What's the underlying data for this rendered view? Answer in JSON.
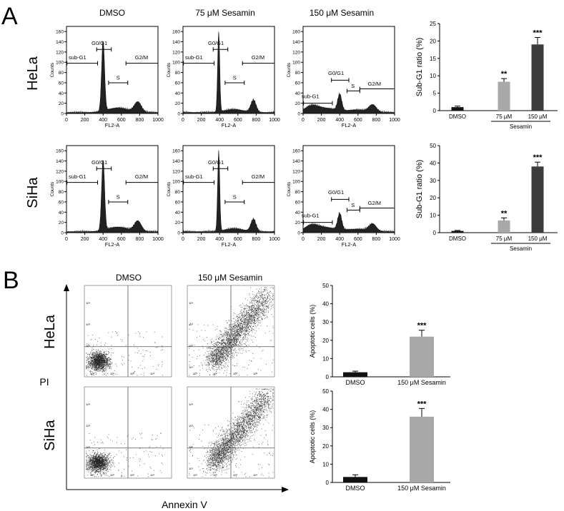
{
  "panel_labels": {
    "a": "A",
    "b": "B"
  },
  "colors": {
    "dmso": "#111111",
    "s75": "#a8a8a8",
    "s150": "#3c3c3c",
    "s150b": "#a8a8a8",
    "hist": "#222222",
    "dots": "#222222"
  },
  "panel_a": {
    "column_titles": [
      "DMSO",
      "75 μM Sesamin",
      "150 μM Sesamin"
    ],
    "row_labels": [
      "HeLa",
      "SiHa"
    ],
    "hist_ylabel": "Counts",
    "hist_xlabel": "FL2-A",
    "hist_x_ticks": [
      "0",
      "200",
      "400",
      "600",
      "800",
      "1000"
    ],
    "hist_y_ticks": [
      "0",
      "20",
      "40",
      "60",
      "80",
      "100",
      "120",
      "140",
      "160"
    ],
    "gates": {
      "subg1": "sub-G1",
      "g0g1": "G0/G1",
      "s": "S",
      "g2m": "G2/M"
    }
  },
  "panel_b": {
    "column_titles": [
      "DMSO",
      "150 μM Sesamin"
    ],
    "row_labels": [
      "HeLa",
      "SiHa"
    ],
    "ylabel": "PI",
    "xlabel": "Annexin V",
    "scatter_ticks": [
      "10¹",
      "10²",
      "10³",
      "10⁴"
    ]
  },
  "chart_data": [
    {
      "type": "bar",
      "id": "hela-subg1",
      "categories": [
        "DMSO",
        "75 μM",
        "150 μM"
      ],
      "values": [
        1,
        8.3,
        19
      ],
      "errors": [
        0.3,
        0.9,
        2.0
      ],
      "significance": [
        "",
        "**",
        "***"
      ],
      "group_label": "Sesamin",
      "ylabel": "Sub-G1 ratio (%)",
      "ylim": [
        0,
        25
      ],
      "yticks": [
        "0",
        "5",
        "10",
        "15",
        "20",
        "25"
      ]
    },
    {
      "type": "bar",
      "id": "siha-subg1",
      "categories": [
        "DMSO",
        "75 μM",
        "150 μM"
      ],
      "values": [
        1,
        7,
        38
      ],
      "errors": [
        0.3,
        1.5,
        2.5
      ],
      "significance": [
        "",
        "**",
        "***"
      ],
      "group_label": "Sesamin",
      "ylabel": "Sub-G1 ratio (%)",
      "ylim": [
        0,
        50
      ],
      "yticks": [
        "0",
        "10",
        "20",
        "30",
        "40",
        "50"
      ]
    },
    {
      "type": "bar",
      "id": "hela-apoptotic",
      "categories": [
        "DMSO",
        "150 μM Sesamin"
      ],
      "values": [
        2.5,
        22
      ],
      "errors": [
        0.6,
        3.5
      ],
      "significance": [
        "",
        "***"
      ],
      "ylabel": "Apoptotic cells (%)",
      "ylim": [
        0,
        50
      ],
      "yticks": [
        "0",
        "10",
        "20",
        "30",
        "40",
        "50"
      ]
    },
    {
      "type": "bar",
      "id": "siha-apoptotic",
      "categories": [
        "DMSO",
        "150 μM Sesamin"
      ],
      "values": [
        3,
        36
      ],
      "errors": [
        1.2,
        4.5
      ],
      "significance": [
        "",
        "***"
      ],
      "ylabel": "Apoptotic cells (%)",
      "ylim": [
        0,
        50
      ],
      "yticks": [
        "0",
        "10",
        "20",
        "30",
        "40",
        "50"
      ]
    }
  ]
}
